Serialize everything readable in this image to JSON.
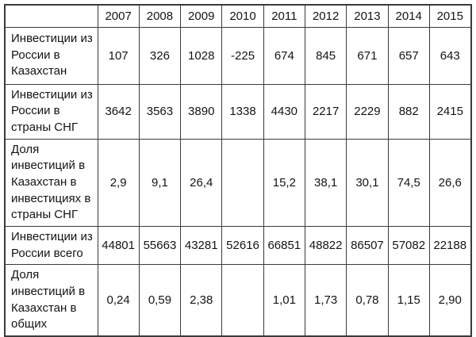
{
  "table": {
    "corner_label": "",
    "years": [
      "2007",
      "2008",
      "2009",
      "2010",
      "2011",
      "2012",
      "2013",
      "2014",
      "2015"
    ],
    "rows": [
      {
        "label": "Инвестиции из\nРоссии в\nКазахстан",
        "values": [
          "107",
          "326",
          "1028",
          "-225",
          "674",
          "845",
          "671",
          "657",
          "643"
        ]
      },
      {
        "label": "Инвестиции из\nРоссии в\nстраны СНГ",
        "values": [
          "3642",
          "3563",
          "3890",
          "1338",
          "4430",
          "2217",
          "2229",
          "882",
          "2415"
        ]
      },
      {
        "label": "Доля\nинвестиций в\nКазахстан в\nинвестициях в\nстраны СНГ",
        "values": [
          "2,9",
          "9,1",
          "26,4",
          "",
          "15,2",
          "38,1",
          "30,1",
          "74,5",
          "26,6"
        ]
      },
      {
        "label": "Инвестиции из\nРоссии всего",
        "values": [
          "44801",
          "55663",
          "43281",
          "52616",
          "66851",
          "48822",
          "86507",
          "57082",
          "22188"
        ]
      },
      {
        "label": "Доля\nинвестиций в\nКазахстан в\nобщих",
        "values": [
          "0,24",
          "0,59",
          "2,38",
          "",
          "1,01",
          "1,73",
          "0,78",
          "1,15",
          "2,90"
        ]
      }
    ]
  }
}
